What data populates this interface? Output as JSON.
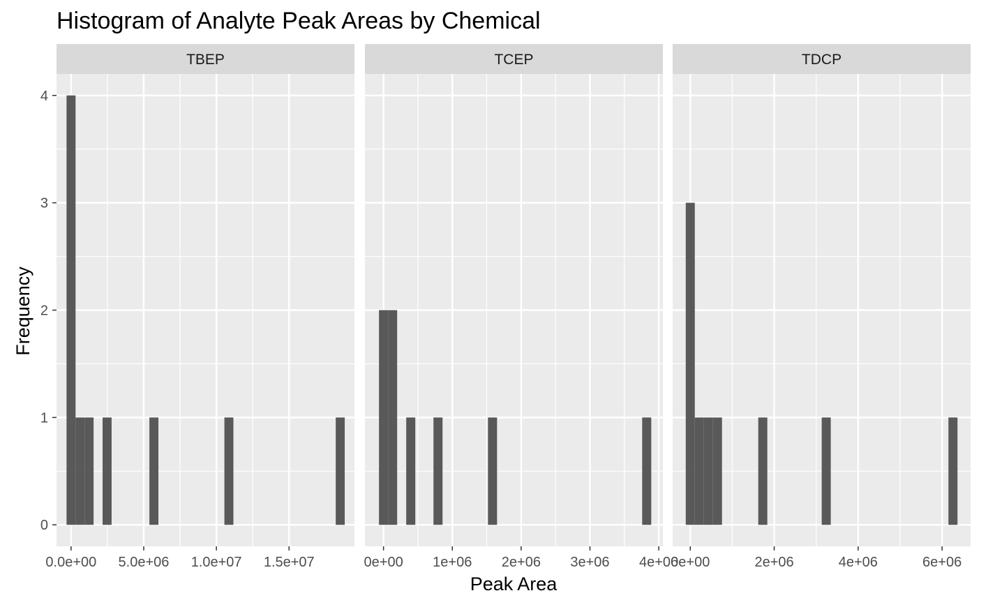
{
  "chart_data": {
    "type": "bar",
    "title": "Histogram of Analyte Peak Areas by Chemical",
    "xlabel": "Peak Area",
    "ylabel": "Frequency",
    "ylim": [
      -0.2,
      4.2
    ],
    "yticks": [
      0,
      1,
      2,
      3,
      4
    ],
    "ytick_labels": [
      "0",
      "1",
      "2",
      "3",
      "4"
    ],
    "grid": true,
    "colors": {
      "bar": "#595959",
      "panel_bg": "#ebebeb",
      "grid_major": "#ffffff",
      "strip_bg": "#d9d9d9",
      "tick_mark": "#333333"
    },
    "facets": [
      {
        "label": "TBEP",
        "xlim": [
          -1000000,
          19500000
        ],
        "xticks": [
          0,
          5000000,
          10000000,
          15000000
        ],
        "xtick_labels": [
          "0.0e+00",
          "5.0e+06",
          "1.0e+07",
          "1.5e+07"
        ],
        "bin_width": 620000,
        "bins": [
          {
            "x": 0,
            "count": 4
          },
          {
            "x": 620000,
            "count": 1
          },
          {
            "x": 1240000,
            "count": 1
          },
          {
            "x": 2480000,
            "count": 1
          },
          {
            "x": 5700000,
            "count": 1
          },
          {
            "x": 10860000,
            "count": 1
          },
          {
            "x": 18520000,
            "count": 1
          }
        ]
      },
      {
        "label": "TCEP",
        "xlim": [
          -270000,
          4060000
        ],
        "xticks": [
          0,
          1000000,
          2000000,
          3000000,
          4000000
        ],
        "xtick_labels": [
          "0e+00",
          "1e+06",
          "2e+06",
          "3e+06",
          "4e+06"
        ],
        "bin_width": 132000,
        "bins": [
          {
            "x": 0,
            "count": 2
          },
          {
            "x": 132000,
            "count": 2
          },
          {
            "x": 396000,
            "count": 1
          },
          {
            "x": 792000,
            "count": 1
          },
          {
            "x": 1584000,
            "count": 1
          },
          {
            "x": 3825000,
            "count": 1
          }
        ]
      },
      {
        "label": "TDCP",
        "xlim": [
          -420000,
          6680000
        ],
        "xticks": [
          0,
          2000000,
          4000000,
          6000000
        ],
        "xtick_labels": [
          "0e+00",
          "2e+06",
          "4e+06",
          "6e+06"
        ],
        "bin_width": 216000,
        "bins": [
          {
            "x": 0,
            "count": 3
          },
          {
            "x": 216000,
            "count": 1
          },
          {
            "x": 432000,
            "count": 1
          },
          {
            "x": 648000,
            "count": 1
          },
          {
            "x": 1728000,
            "count": 1
          },
          {
            "x": 3240000,
            "count": 1
          },
          {
            "x": 6260000,
            "count": 1
          }
        ]
      }
    ]
  }
}
